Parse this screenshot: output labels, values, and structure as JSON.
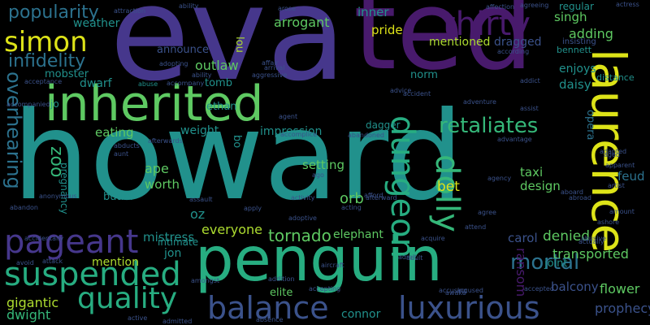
{
  "palette": {
    "indigo": "#46378c",
    "purple": "#481a6c",
    "dark_purple": "#440154",
    "teal": "#21918c",
    "blue_teal": "#2c728e",
    "slate": "#3b528b",
    "green": "#5ec962",
    "sea_green": "#27ad81",
    "mint": "#35b779",
    "yellow_green": "#addc30",
    "yellow": "#dde318"
  },
  "words": [
    {
      "text": "eva",
      "color": "indigo"
    },
    {
      "text": "ted",
      "color": "purple"
    },
    {
      "text": "howard",
      "color": "teal"
    },
    {
      "text": "penguin",
      "color": "sea_green"
    },
    {
      "text": "inherited",
      "color": "green"
    },
    {
      "text": "laurence",
      "color": "yellow"
    },
    {
      "text": "pageant",
      "color": "indigo"
    },
    {
      "text": "suspended",
      "color": "sea_green"
    },
    {
      "text": "balance",
      "color": "slate"
    },
    {
      "text": "luxurious",
      "color": "slate"
    },
    {
      "text": "quality",
      "color": "sea_green"
    },
    {
      "text": "simon",
      "color": "yellow"
    },
    {
      "text": "thirty",
      "color": "purple"
    },
    {
      "text": "dungeon",
      "color": "sea_green"
    },
    {
      "text": "dolly",
      "color": "mint"
    },
    {
      "text": "retaliates",
      "color": "mint"
    },
    {
      "text": "popularity",
      "color": "blue_teal"
    },
    {
      "text": "infidelity",
      "color": "blue_teal"
    },
    {
      "text": "overhearing",
      "color": "blue_teal"
    },
    {
      "text": "zoo",
      "color": "mint"
    },
    {
      "text": "mortal",
      "color": "blue_teal"
    },
    {
      "text": "tornado",
      "color": "green"
    },
    {
      "text": "everyone",
      "color": "yellow_green"
    },
    {
      "text": "transported",
      "color": "green"
    },
    {
      "text": "denied",
      "color": "green"
    },
    {
      "text": "gigantic",
      "color": "yellow_green"
    },
    {
      "text": "dwight",
      "color": "mint"
    },
    {
      "text": "prophecy",
      "color": "slate"
    },
    {
      "text": "flower",
      "color": "green"
    },
    {
      "text": "balcony",
      "color": "slate"
    },
    {
      "text": "carol",
      "color": "slate"
    },
    {
      "text": "ransom",
      "color": "purple"
    },
    {
      "text": "singh",
      "color": "green"
    },
    {
      "text": "adding",
      "color": "green"
    },
    {
      "text": "enjoys",
      "color": "teal"
    },
    {
      "text": "daisy",
      "color": "teal"
    },
    {
      "text": "opera",
      "color": "blue_teal"
    },
    {
      "text": "feud",
      "color": "blue_teal"
    },
    {
      "text": "taxi",
      "color": "green"
    },
    {
      "text": "design",
      "color": "green"
    },
    {
      "text": "orb",
      "color": "green"
    },
    {
      "text": "bet",
      "color": "yellow"
    },
    {
      "text": "setting",
      "color": "green"
    },
    {
      "text": "ape",
      "color": "green"
    },
    {
      "text": "worth",
      "color": "green"
    },
    {
      "text": "oz",
      "color": "teal"
    },
    {
      "text": "mistress",
      "color": "teal"
    },
    {
      "text": "jon",
      "color": "teal"
    },
    {
      "text": "mention",
      "color": "yellow_green"
    },
    {
      "text": "intimate",
      "color": "teal"
    },
    {
      "text": "elephant",
      "color": "green"
    },
    {
      "text": "connor",
      "color": "teal"
    },
    {
      "text": "elite",
      "color": "green"
    },
    {
      "text": "weather",
      "color": "teal"
    },
    {
      "text": "mobster",
      "color": "teal"
    },
    {
      "text": "jo",
      "color": "teal"
    },
    {
      "text": "dwarf",
      "color": "teal"
    },
    {
      "text": "eating",
      "color": "green"
    },
    {
      "text": "weight",
      "color": "teal"
    },
    {
      "text": "tomb",
      "color": "teal"
    },
    {
      "text": "ethan",
      "color": "teal"
    },
    {
      "text": "announce",
      "color": "slate"
    },
    {
      "text": "outlaw",
      "color": "green"
    },
    {
      "text": "arrogant",
      "color": "green"
    },
    {
      "text": "inner",
      "color": "teal"
    },
    {
      "text": "pride",
      "color": "yellow"
    },
    {
      "text": "mentioned",
      "color": "yellow_green"
    },
    {
      "text": "dragged",
      "color": "slate"
    },
    {
      "text": "norm",
      "color": "teal"
    },
    {
      "text": "lou",
      "color": "yellow_green"
    },
    {
      "text": "impression",
      "color": "teal"
    },
    {
      "text": "dagger",
      "color": "teal"
    },
    {
      "text": "regular",
      "color": "teal"
    },
    {
      "text": "insisting",
      "color": "slate"
    },
    {
      "text": "bennett",
      "color": "teal"
    },
    {
      "text": "distance",
      "color": "teal"
    },
    {
      "text": "joint",
      "color": "teal"
    },
    {
      "text": "butler",
      "color": "teal"
    },
    {
      "text": "pregnancy",
      "color": "teal"
    },
    {
      "text": "bo",
      "color": "teal"
    },
    {
      "text": "abuse",
      "color": "teal"
    },
    {
      "text": "agreeing",
      "color": "slate"
    },
    {
      "text": "ability",
      "color": "slate"
    },
    {
      "text": "arose",
      "color": "slate"
    },
    {
      "text": "attraction",
      "color": "slate"
    },
    {
      "text": "affection",
      "color": "slate"
    },
    {
      "text": "actress",
      "color": "slate"
    },
    {
      "text": "adopting",
      "color": "slate"
    },
    {
      "text": "advice",
      "color": "slate"
    },
    {
      "text": "addict",
      "color": "slate"
    },
    {
      "text": "adventure",
      "color": "slate"
    },
    {
      "text": "accident",
      "color": "slate"
    },
    {
      "text": "accompany",
      "color": "slate"
    },
    {
      "text": "acceptance",
      "color": "slate"
    },
    {
      "text": "according",
      "color": "slate"
    },
    {
      "text": "admitted",
      "color": "slate"
    },
    {
      "text": "accused",
      "color": "slate"
    },
    {
      "text": "ability",
      "color": "slate"
    },
    {
      "text": "aggressive",
      "color": "slate"
    },
    {
      "text": "afterwards",
      "color": "slate"
    },
    {
      "text": "arrival",
      "color": "slate"
    },
    {
      "text": "affair",
      "color": "slate"
    },
    {
      "text": "adoptive",
      "color": "slate"
    },
    {
      "text": "agent",
      "color": "slate"
    },
    {
      "text": "activity",
      "color": "slate"
    },
    {
      "text": "acting",
      "color": "slate"
    },
    {
      "text": "actually",
      "color": "slate"
    },
    {
      "text": "adult",
      "color": "slate"
    },
    {
      "text": "active",
      "color": "slate"
    },
    {
      "text": "absence",
      "color": "slate"
    },
    {
      "text": "attack",
      "color": "slate"
    },
    {
      "text": "accepting",
      "color": "slate"
    },
    {
      "text": "accusing",
      "color": "slate"
    },
    {
      "text": "accepted",
      "color": "slate"
    },
    {
      "text": "aircraft",
      "color": "slate"
    },
    {
      "text": "addition",
      "color": "slate"
    },
    {
      "text": "advantage",
      "color": "slate"
    },
    {
      "text": "accomplice",
      "color": "slate"
    },
    {
      "text": "acquire",
      "color": "slate"
    },
    {
      "text": "admit",
      "color": "slate"
    },
    {
      "text": "agency",
      "color": "slate"
    },
    {
      "text": "ago",
      "color": "slate"
    },
    {
      "text": "avoid",
      "color": "slate"
    },
    {
      "text": "aboard",
      "color": "slate"
    },
    {
      "text": "abroad",
      "color": "slate"
    },
    {
      "text": "abandoned",
      "color": "slate"
    },
    {
      "text": "abducts",
      "color": "slate"
    },
    {
      "text": "adapted",
      "color": "slate"
    },
    {
      "text": "aunt",
      "color": "slate"
    },
    {
      "text": "amount",
      "color": "slate"
    },
    {
      "text": "awake",
      "color": "slate"
    },
    {
      "text": "aged",
      "color": "slate"
    },
    {
      "text": "anonymous",
      "color": "slate"
    },
    {
      "text": "abandon",
      "color": "slate"
    },
    {
      "text": "accompanied",
      "color": "slate"
    },
    {
      "text": "assist",
      "color": "slate"
    },
    {
      "text": "abusive",
      "color": "slate"
    },
    {
      "text": "afford",
      "color": "slate"
    },
    {
      "text": "ashore",
      "color": "slate"
    },
    {
      "text": "amongst",
      "color": "slate"
    },
    {
      "text": "apparent",
      "color": "slate"
    },
    {
      "text": "agree",
      "color": "slate"
    },
    {
      "text": "accidentally",
      "color": "slate"
    },
    {
      "text": "attend",
      "color": "slate"
    },
    {
      "text": "apply",
      "color": "slate"
    },
    {
      "text": "artist",
      "color": "slate"
    },
    {
      "text": "assault",
      "color": "slate"
    },
    {
      "text": "afterward",
      "color": "slate"
    }
  ]
}
